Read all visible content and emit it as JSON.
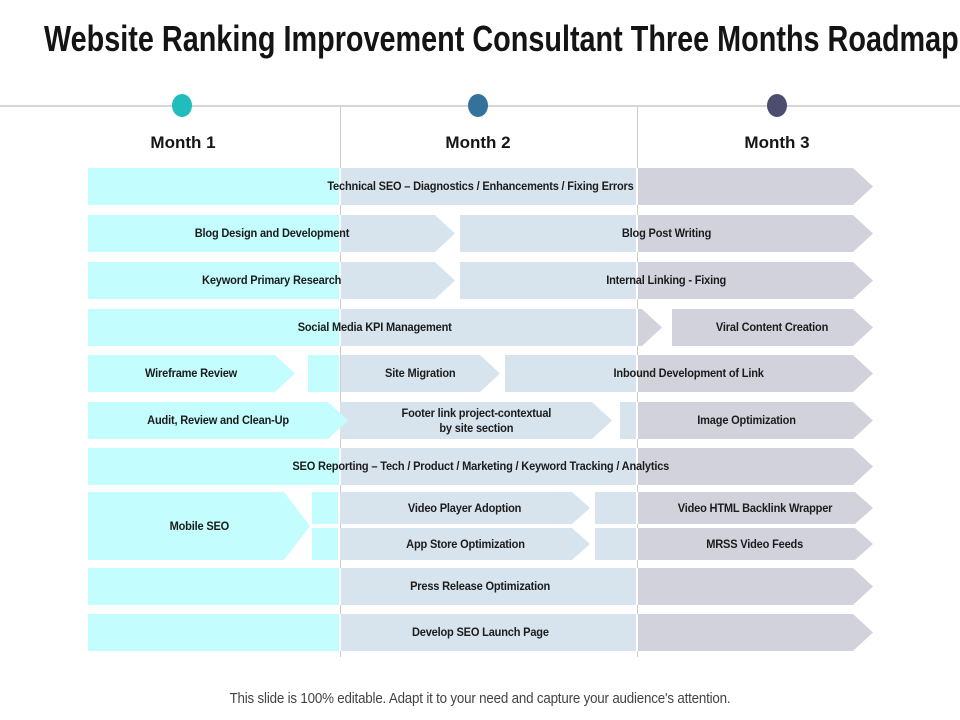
{
  "title": "Website Ranking Improvement Consultant Three Months Roadmap",
  "palette": {
    "month1_fill": "#c3fdfd",
    "month2_fill": "#d7e4ee",
    "month3_fill": "#d2d2dc"
  },
  "timeline": {
    "months": [
      {
        "label": "Month 1",
        "dot_color": "#20bdbd"
      },
      {
        "label": "Month 2",
        "dot_color": "#34719b"
      },
      {
        "label": "Month 3",
        "dot_color": "#4d4d70"
      }
    ]
  },
  "bars": {
    "technical_seo": "Technical SEO – Diagnostics / Enhancements / Fixing Errors",
    "blog_design": "Blog Design and Development",
    "blog_post": "Blog Post Writing",
    "keyword_research": "Keyword Primary Research",
    "internal_linking": "Internal Linking - Fixing",
    "social_media_kpi": "Social Media KPI Management",
    "viral_content": "Viral Content Creation",
    "wireframe_review": "Wireframe Review",
    "site_migration": "Site Migration",
    "inbound_link": "Inbound Development of Link",
    "audit_cleanup": "Audit, Review and Clean-Up",
    "footer_link_line1": "Footer link project-contextual",
    "footer_link_line2": "by site section",
    "image_optimization": "Image Optimization",
    "seo_reporting": "SEO Reporting – Tech / Product / Marketing / Keyword Tracking / Analytics",
    "mobile_seo": "Mobile SEO",
    "video_player": "Video Player Adoption",
    "video_html": "Video HTML Backlink Wrapper",
    "app_store": "App Store Optimization",
    "mrss_feeds": "MRSS Video Feeds",
    "press_release": "Press Release Optimization",
    "develop_seo": "Develop SEO Launch Page"
  },
  "footer": "This slide is 100% editable. Adapt it to your need and capture your audience's attention."
}
